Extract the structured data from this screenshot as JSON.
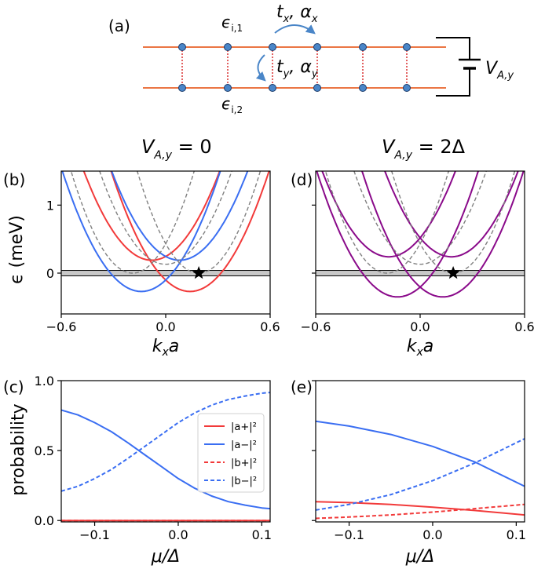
{
  "schematic": {
    "panel_label": "(a)",
    "eps_top": "ϵ",
    "eps_top_sub": "i,1",
    "eps_bottom": "ϵ",
    "eps_bottom_sub": "i,2",
    "hop_x": "t",
    "hop_x_sub": "x",
    "soc_x": ", α",
    "soc_x_sub": "x",
    "hop_y": "t",
    "hop_y_sub": "y",
    "soc_y": ", α",
    "soc_y_sub": "y",
    "voltage": "V",
    "voltage_sub": "A,y",
    "chain_color": "#e8622a",
    "site_color": "#4a86c8",
    "rung_color": "#d62020"
  },
  "column_titles": {
    "left": "V",
    "left_sub": "A,y",
    "left_rhs": " = 0",
    "right": "V",
    "right_sub": "A,y",
    "right_rhs": " = 2Δ"
  },
  "colors": {
    "red": "#f23a3a",
    "blue": "#3a6ef2",
    "purple": "#8a0a8a",
    "gray": "#808080"
  },
  "chart_data": [
    {
      "panel": "(b)",
      "type": "line",
      "xlabel": "k_x a",
      "ylabel": "ϵ (meV)",
      "xlim": [
        -0.6,
        0.6
      ],
      "ylim": [
        -0.6,
        1.5
      ],
      "xticks": [
        "−0.6",
        "0.0",
        "0.6"
      ],
      "yticks": [
        "0",
        "1"
      ],
      "star": {
        "x": 0.19,
        "y": 0.0
      },
      "series": [
        {
          "name": "red lower",
          "color": "red",
          "style": "solid",
          "form": "parabola",
          "a": 8.6,
          "x0": 0.14,
          "y0": -0.27
        },
        {
          "name": "red upper",
          "color": "red",
          "style": "solid",
          "form": "parabola",
          "a": 8.6,
          "x0": -0.08,
          "y0": 0.19
        },
        {
          "name": "blue lower",
          "color": "blue",
          "style": "solid",
          "form": "parabola",
          "a": 8.6,
          "x0": -0.14,
          "y0": -0.27
        },
        {
          "name": "blue upper",
          "color": "blue",
          "style": "solid",
          "form": "parabola",
          "a": 8.6,
          "x0": 0.08,
          "y0": 0.19
        },
        {
          "name": "dispersion 1",
          "color": "gray",
          "style": "dashed",
          "form": "parabola",
          "a": 12,
          "x0": -0.19,
          "y0": 0.0
        },
        {
          "name": "dispersion 2",
          "color": "gray",
          "style": "dashed",
          "form": "parabola",
          "a": 12,
          "x0": 0.19,
          "y0": 0.0
        },
        {
          "name": "hole branch 1",
          "color": "gray",
          "style": "dashed",
          "form": "ushape",
          "a": 9.5,
          "x0": 0.0,
          "y0": 0.13,
          "c": 0.12
        }
      ]
    },
    {
      "panel": "(d)",
      "type": "line",
      "xlabel": "k_x a",
      "ylabel": "",
      "xlim": [
        -0.6,
        0.6
      ],
      "ylim": [
        -0.6,
        1.5
      ],
      "xticks": [
        "−0.6",
        "0.0",
        "0.6"
      ],
      "yticks": [],
      "star": {
        "x": 0.19,
        "y": 0.0
      },
      "series": [
        {
          "name": "band 1",
          "color": "purple",
          "style": "solid",
          "form": "parabola",
          "a": 8.6,
          "x0": -0.18,
          "y0": 0.24
        },
        {
          "name": "band 2",
          "color": "purple",
          "style": "solid",
          "form": "parabola",
          "a": 8.6,
          "x0": 0.18,
          "y0": 0.24
        },
        {
          "name": "band 3",
          "color": "purple",
          "style": "solid",
          "form": "parabola",
          "a": 8.6,
          "x0": -0.13,
          "y0": -0.35
        },
        {
          "name": "band 4",
          "color": "purple",
          "style": "solid",
          "form": "parabola",
          "a": 8.6,
          "x0": 0.13,
          "y0": -0.35
        },
        {
          "name": "dispersion 1",
          "color": "gray",
          "style": "dashed",
          "form": "parabola",
          "a": 12,
          "x0": -0.19,
          "y0": 0.0
        },
        {
          "name": "dispersion 2",
          "color": "gray",
          "style": "dashed",
          "form": "parabola",
          "a": 12,
          "x0": 0.19,
          "y0": 0.0
        },
        {
          "name": "hole branch 1",
          "color": "gray",
          "style": "dashed",
          "form": "ushape",
          "a": 9.5,
          "x0": 0.0,
          "y0": 0.13,
          "c": 0.12
        }
      ]
    },
    {
      "panel": "(c)",
      "type": "line",
      "xlabel": "μ/Δ",
      "ylabel": "probability",
      "xlim": [
        -0.14,
        0.11
      ],
      "ylim": [
        -0.01,
        1.0
      ],
      "xticks": [
        "−0.1",
        "0.0",
        "0.1"
      ],
      "xtick_values": [
        -0.1,
        0.0,
        0.1
      ],
      "yticks": [
        "0.0",
        "0.5",
        "1.0"
      ],
      "ytick_values": [
        0.0,
        0.5,
        1.0
      ],
      "legend": {
        "position": "center-right",
        "entries": [
          {
            "label": "|a+|²",
            "color": "red",
            "style": "solid"
          },
          {
            "label": "|a−|²",
            "color": "blue",
            "style": "solid"
          },
          {
            "label": "|b+|²",
            "color": "red",
            "style": "dashed"
          },
          {
            "label": "|b−|²",
            "color": "blue",
            "style": "dashed"
          }
        ]
      },
      "series": [
        {
          "name": "|a+|²",
          "color": "red",
          "style": "solid",
          "x": [
            -0.14,
            0.11
          ],
          "y": [
            0.0,
            0.0
          ]
        },
        {
          "name": "|b+|²",
          "color": "red",
          "style": "dashed",
          "x": [
            -0.14,
            0.11
          ],
          "y": [
            0.0,
            0.0
          ]
        },
        {
          "name": "|a−|²",
          "color": "blue",
          "style": "solid",
          "x": [
            -0.14,
            -0.12,
            -0.1,
            -0.08,
            -0.06,
            -0.04,
            -0.02,
            0.0,
            0.02,
            0.04,
            0.06,
            0.08,
            0.1,
            0.11
          ],
          "y": [
            0.79,
            0.755,
            0.7,
            0.635,
            0.555,
            0.47,
            0.385,
            0.3,
            0.23,
            0.175,
            0.135,
            0.11,
            0.09,
            0.085
          ]
        },
        {
          "name": "|b−|²",
          "color": "blue",
          "style": "dashed",
          "x": [
            -0.14,
            -0.12,
            -0.1,
            -0.08,
            -0.06,
            -0.04,
            -0.02,
            0.0,
            0.02,
            0.04,
            0.06,
            0.08,
            0.1,
            0.11
          ],
          "y": [
            0.21,
            0.245,
            0.3,
            0.365,
            0.445,
            0.53,
            0.615,
            0.7,
            0.77,
            0.825,
            0.865,
            0.89,
            0.91,
            0.915
          ]
        }
      ]
    },
    {
      "panel": "(e)",
      "type": "line",
      "xlabel": "μ/Δ",
      "ylabel": "",
      "xlim": [
        -0.14,
        0.11
      ],
      "ylim": [
        -0.01,
        1.0
      ],
      "xticks": [
        "−0.1",
        "0.0",
        "0.1"
      ],
      "xtick_values": [
        -0.1,
        0.0,
        0.1
      ],
      "yticks": [],
      "ytick_values": [
        0.0,
        0.5,
        1.0
      ],
      "series": [
        {
          "name": "|a+|²",
          "color": "red",
          "style": "solid",
          "x": [
            -0.14,
            -0.1,
            -0.05,
            0.0,
            0.05,
            0.11
          ],
          "y": [
            0.135,
            0.128,
            0.115,
            0.095,
            0.072,
            0.04
          ]
        },
        {
          "name": "|b+|²",
          "color": "red",
          "style": "dashed",
          "x": [
            -0.14,
            -0.1,
            -0.05,
            0.0,
            0.05,
            0.11
          ],
          "y": [
            0.015,
            0.025,
            0.04,
            0.06,
            0.085,
            0.115
          ]
        },
        {
          "name": "|a−|²",
          "color": "blue",
          "style": "solid",
          "x": [
            -0.14,
            -0.1,
            -0.05,
            0.0,
            0.05,
            0.11
          ],
          "y": [
            0.71,
            0.675,
            0.615,
            0.53,
            0.42,
            0.245
          ]
        },
        {
          "name": "|b−|²",
          "color": "blue",
          "style": "dashed",
          "x": [
            -0.14,
            -0.1,
            -0.05,
            0.0,
            0.05,
            0.11
          ],
          "y": [
            0.075,
            0.115,
            0.185,
            0.285,
            0.41,
            0.585
          ]
        }
      ]
    }
  ]
}
